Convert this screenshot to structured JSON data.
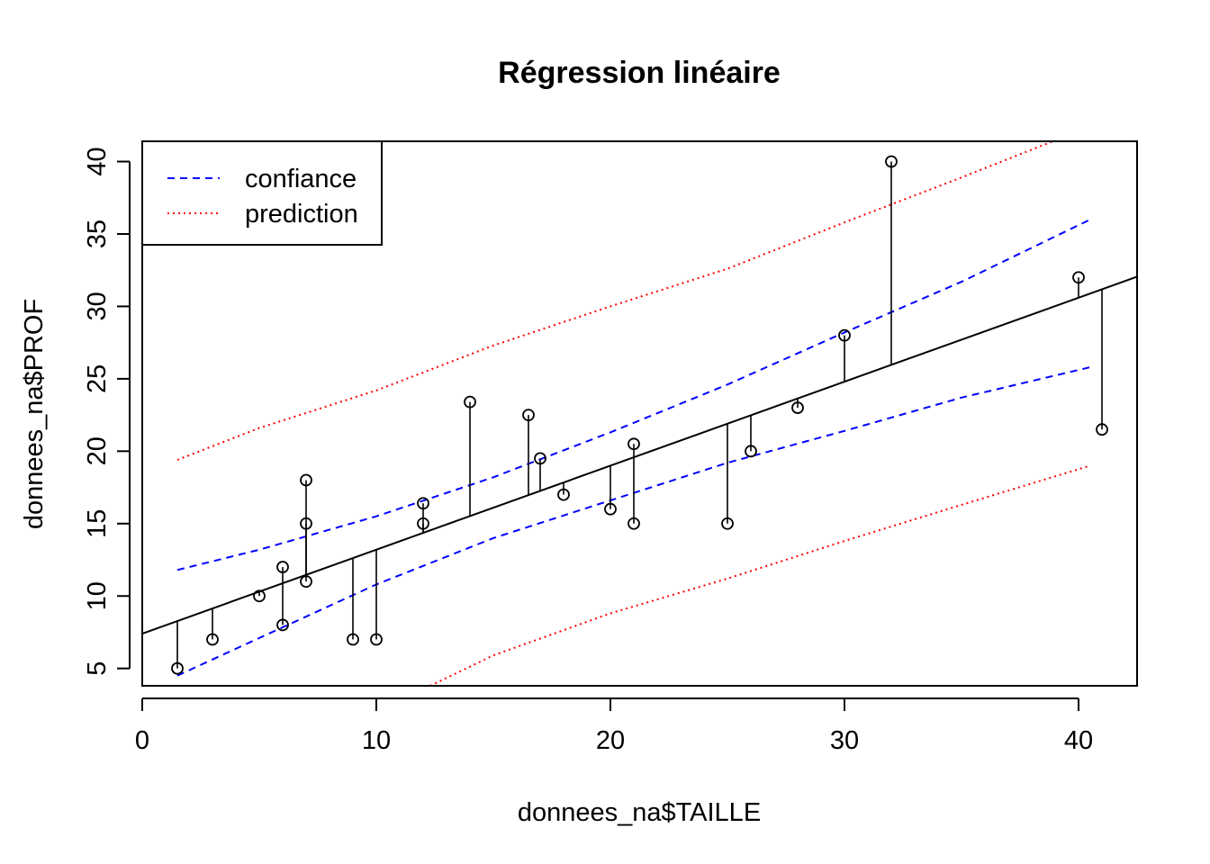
{
  "chart_data": {
    "type": "scatter",
    "title": "Régression linéaire",
    "xlabel": "donnees_na$TAILLE",
    "ylabel": "donnees_na$PROF",
    "xlim": [
      0,
      42.5
    ],
    "ylim": [
      3.8,
      41.4
    ],
    "x_ticks": [
      "0",
      "10",
      "20",
      "30",
      "40"
    ],
    "y_ticks": [
      "5",
      "10",
      "15",
      "20",
      "25",
      "30",
      "35",
      "40"
    ],
    "grid": false,
    "legend_position": "top-left",
    "points": [
      {
        "x": 1.5,
        "y": 5
      },
      {
        "x": 3,
        "y": 7
      },
      {
        "x": 5,
        "y": 10
      },
      {
        "x": 6,
        "y": 12
      },
      {
        "x": 6,
        "y": 8
      },
      {
        "x": 7,
        "y": 18
      },
      {
        "x": 7,
        "y": 15
      },
      {
        "x": 7,
        "y": 11
      },
      {
        "x": 9,
        "y": 7
      },
      {
        "x": 10,
        "y": 7
      },
      {
        "x": 12,
        "y": 16.4
      },
      {
        "x": 12,
        "y": 15
      },
      {
        "x": 14,
        "y": 23.4
      },
      {
        "x": 16.5,
        "y": 22.5
      },
      {
        "x": 17,
        "y": 19.5
      },
      {
        "x": 18,
        "y": 17
      },
      {
        "x": 20,
        "y": 16
      },
      {
        "x": 21,
        "y": 20.5
      },
      {
        "x": 21,
        "y": 15
      },
      {
        "x": 25,
        "y": 15
      },
      {
        "x": 26,
        "y": 20
      },
      {
        "x": 28,
        "y": 23
      },
      {
        "x": 30,
        "y": 28
      },
      {
        "x": 32,
        "y": 40
      },
      {
        "x": 40,
        "y": 32
      },
      {
        "x": 41,
        "y": 21.5
      }
    ],
    "regression": {
      "intercept": 7.4,
      "slope": 0.58
    },
    "series": [
      {
        "name": "confiance",
        "color": "#0000ff",
        "style": "dashed",
        "lower": [
          [
            1.5,
            4.5
          ],
          [
            5,
            7.1
          ],
          [
            10,
            10.8
          ],
          [
            15,
            14.0
          ],
          [
            20,
            16.6
          ],
          [
            25,
            19.2
          ],
          [
            30,
            21.4
          ],
          [
            35,
            23.7
          ],
          [
            40.5,
            25.8
          ]
        ],
        "upper": [
          [
            1.5,
            11.8
          ],
          [
            5,
            13.2
          ],
          [
            10,
            15.5
          ],
          [
            15,
            18.2
          ],
          [
            20,
            21.3
          ],
          [
            25,
            24.6
          ],
          [
            30,
            28.2
          ],
          [
            35,
            31.7
          ],
          [
            40.5,
            36.0
          ]
        ]
      },
      {
        "name": "prediction",
        "color": "#ff0000",
        "style": "dotted",
        "lower": [
          [
            12.3,
            3.8
          ],
          [
            15,
            5.9
          ],
          [
            20,
            8.8
          ],
          [
            25,
            11.2
          ],
          [
            30,
            13.8
          ],
          [
            35,
            16.3
          ],
          [
            40.5,
            19.0
          ]
        ],
        "upper": [
          [
            1.5,
            19.4
          ],
          [
            5,
            21.6
          ],
          [
            10,
            24.2
          ],
          [
            15,
            27.3
          ],
          [
            20,
            30.0
          ],
          [
            25,
            32.6
          ],
          [
            30,
            35.8
          ],
          [
            35,
            38.9
          ],
          [
            38.9,
            41.4
          ]
        ]
      }
    ]
  }
}
